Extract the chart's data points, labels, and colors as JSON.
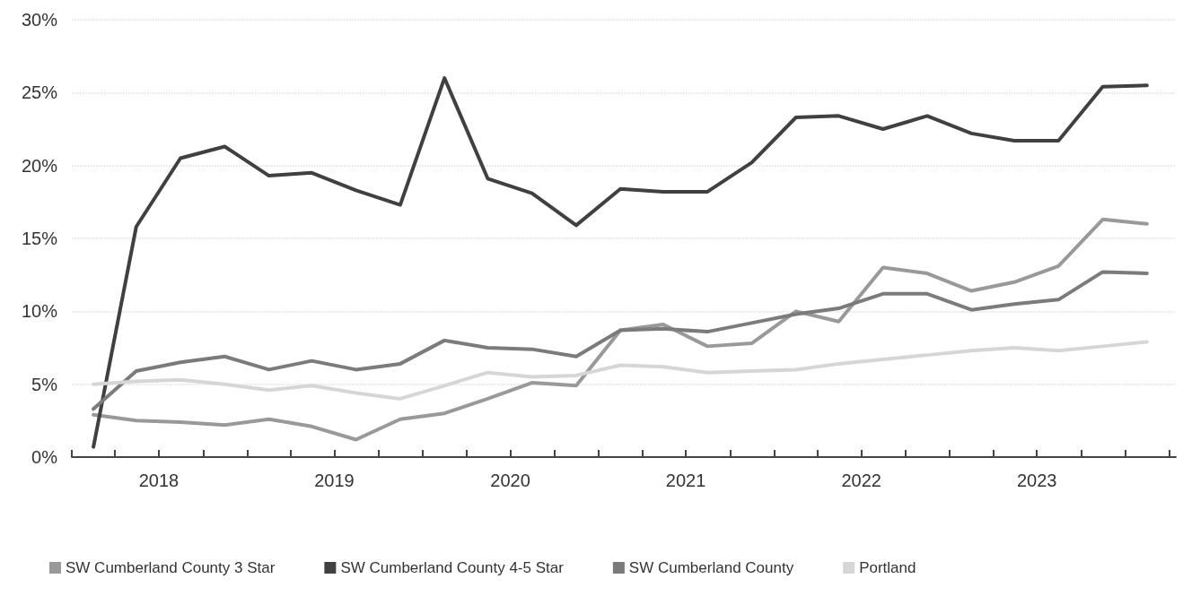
{
  "chart_data": {
    "type": "line",
    "x": [
      "2018-02-15",
      "2018-05-15",
      "2018-08-15",
      "2018-11-15",
      "2019-02-15",
      "2019-05-15",
      "2019-08-15",
      "2019-11-15",
      "2020-02-15",
      "2020-05-15",
      "2020-08-15",
      "2020-11-15",
      "2021-02-15",
      "2021-05-15",
      "2021-08-15",
      "2021-11-15",
      "2022-02-15",
      "2022-05-15",
      "2022-08-15",
      "2022-11-15",
      "2023-02-15",
      "2023-05-15",
      "2023-08-15",
      "2023-11-15",
      "2024-02-15"
    ],
    "series": [
      {
        "name": "SW Cumberland County 3 Star",
        "color": "#999999",
        "values": [
          2.9,
          2.5,
          2.4,
          2.2,
          2.6,
          2.1,
          1.2,
          2.6,
          3.0,
          4.0,
          5.1,
          4.9,
          8.7,
          9.1,
          7.6,
          7.8,
          10.0,
          9.3,
          13.0,
          12.6,
          11.4,
          12.0,
          13.1,
          16.3,
          16.0
        ]
      },
      {
        "name": "SW Cumberland County 4-5 Star",
        "color": "#404040",
        "values": [
          0.7,
          15.8,
          20.5,
          21.3,
          19.3,
          19.5,
          18.3,
          17.3,
          26.0,
          19.1,
          18.1,
          15.9,
          18.4,
          18.2,
          18.2,
          20.2,
          23.3,
          23.4,
          22.5,
          23.4,
          22.2,
          21.7,
          21.7,
          25.4,
          25.5
        ]
      },
      {
        "name": "SW Cumberland County",
        "color": "#7b7b7b",
        "values": [
          3.3,
          5.9,
          6.5,
          6.9,
          6.0,
          6.6,
          6.0,
          6.4,
          8.0,
          7.5,
          7.4,
          6.9,
          8.7,
          8.8,
          8.6,
          9.2,
          9.8,
          10.2,
          11.2,
          11.2,
          10.1,
          10.5,
          10.8,
          12.7,
          12.6
        ]
      },
      {
        "name": "Portland",
        "color": "#d6d6d6",
        "values": [
          5.0,
          5.2,
          5.3,
          5.0,
          4.6,
          4.9,
          4.4,
          4.0,
          4.9,
          5.8,
          5.5,
          5.6,
          6.3,
          6.2,
          5.8,
          5.9,
          6.0,
          6.4,
          6.7,
          7.0,
          7.3,
          7.5,
          7.3,
          7.6,
          7.9
        ]
      }
    ],
    "xlim": [
      "2018-01-01",
      "2024-04-15"
    ],
    "xticks": [
      {
        "value": "2018-01-01",
        "label": null
      },
      {
        "value": "2018-04-01",
        "label": null
      },
      {
        "value": "2018-07-01",
        "label": "2018"
      },
      {
        "value": "2018-10-01",
        "label": null
      },
      {
        "value": "2019-01-01",
        "label": null
      },
      {
        "value": "2019-04-01",
        "label": null
      },
      {
        "value": "2019-07-01",
        "label": "2019"
      },
      {
        "value": "2019-10-01",
        "label": null
      },
      {
        "value": "2020-01-01",
        "label": null
      },
      {
        "value": "2020-04-01",
        "label": null
      },
      {
        "value": "2020-07-01",
        "label": "2020"
      },
      {
        "value": "2020-10-01",
        "label": null
      },
      {
        "value": "2021-01-01",
        "label": null
      },
      {
        "value": "2021-04-01",
        "label": null
      },
      {
        "value": "2021-07-01",
        "label": "2021"
      },
      {
        "value": "2021-10-01",
        "label": null
      },
      {
        "value": "2022-01-01",
        "label": null
      },
      {
        "value": "2022-04-01",
        "label": null
      },
      {
        "value": "2022-07-01",
        "label": "2022"
      },
      {
        "value": "2022-10-01",
        "label": null
      },
      {
        "value": "2023-01-01",
        "label": null
      },
      {
        "value": "2023-04-01",
        "label": null
      },
      {
        "value": "2023-07-01",
        "label": "2023"
      },
      {
        "value": "2023-10-01",
        "label": null
      },
      {
        "value": "2024-01-01",
        "label": null
      },
      {
        "value": "2024-04-01",
        "label": null
      }
    ],
    "ylim": [
      0,
      30
    ],
    "yticks": [
      {
        "value": 0,
        "label": "0%"
      },
      {
        "value": 5,
        "label": "5%"
      },
      {
        "value": 10,
        "label": "10%"
      },
      {
        "value": 15,
        "label": "15%"
      },
      {
        "value": 20,
        "label": "20%"
      },
      {
        "value": 25,
        "label": "25%"
      },
      {
        "value": 30,
        "label": "30%"
      }
    ],
    "grid": "y",
    "legend": "bottom",
    "marker": "none",
    "line_style": "solid"
  }
}
